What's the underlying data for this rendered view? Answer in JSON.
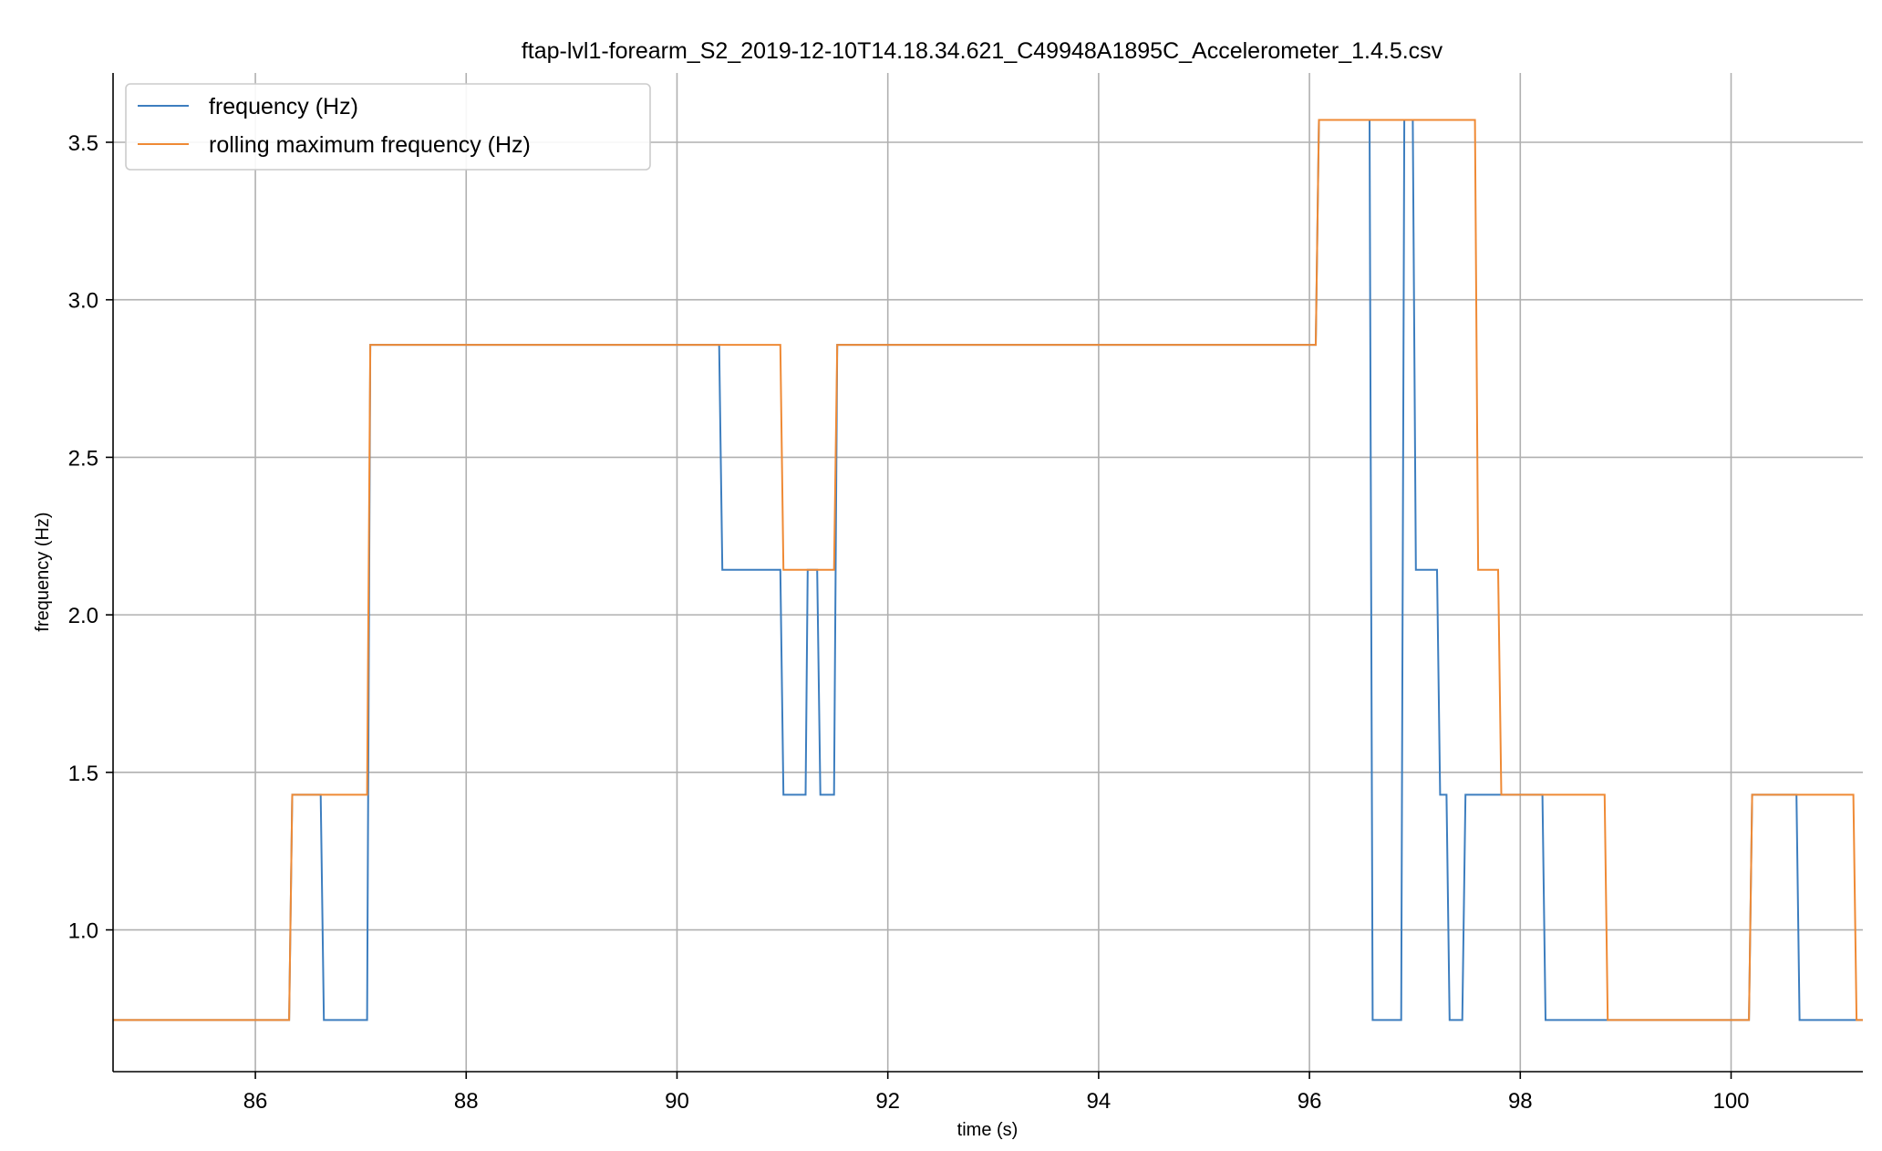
{
  "chart_data": {
    "type": "line",
    "step": true,
    "title": "ftap-lvl1-forearm_S2_2019-12-10T14.18.34.621_C49948A1895C_Accelerometer_1.4.5.csv",
    "xlabel": "time (s)",
    "ylabel": "frequency (Hz)",
    "xlim": [
      84.65,
      101.25
    ],
    "ylim": [
      0.55,
      3.72
    ],
    "xticks": [
      86,
      88,
      90,
      92,
      94,
      96,
      98,
      100
    ],
    "yticks": [
      1.0,
      1.5,
      2.0,
      2.5,
      3.0,
      3.5
    ],
    "xtick_labels": [
      "86",
      "88",
      "90",
      "92",
      "94",
      "96",
      "98",
      "100"
    ],
    "ytick_labels": [
      "1.0",
      "1.5",
      "2.0",
      "2.5",
      "3.0",
      "3.5"
    ],
    "grid": true,
    "legend": "top-left",
    "series": [
      {
        "name": "frequency (Hz)",
        "color": "#3d7ebf",
        "points": [
          [
            84.65,
            0.714
          ],
          [
            86.32,
            0.714
          ],
          [
            86.35,
            1.429
          ],
          [
            86.62,
            1.429
          ],
          [
            86.65,
            0.714
          ],
          [
            87.06,
            0.714
          ],
          [
            87.09,
            2.857
          ],
          [
            90.4,
            2.857
          ],
          [
            90.43,
            2.143
          ],
          [
            90.98,
            2.143
          ],
          [
            91.01,
            1.429
          ],
          [
            91.22,
            1.429
          ],
          [
            91.24,
            2.143
          ],
          [
            91.33,
            2.143
          ],
          [
            91.36,
            1.429
          ],
          [
            91.49,
            1.429
          ],
          [
            91.52,
            2.857
          ],
          [
            96.06,
            2.857
          ],
          [
            96.09,
            3.571
          ],
          [
            96.57,
            3.571
          ],
          [
            96.6,
            0.714
          ],
          [
            96.87,
            0.714
          ],
          [
            96.9,
            3.571
          ],
          [
            96.98,
            3.571
          ],
          [
            97.01,
            2.143
          ],
          [
            97.21,
            2.143
          ],
          [
            97.24,
            1.429
          ],
          [
            97.3,
            1.429
          ],
          [
            97.33,
            0.714
          ],
          [
            97.45,
            0.714
          ],
          [
            97.48,
            1.429
          ],
          [
            98.21,
            1.429
          ],
          [
            98.24,
            0.714
          ],
          [
            100.17,
            0.714
          ],
          [
            100.2,
            1.429
          ],
          [
            100.62,
            1.429
          ],
          [
            100.65,
            0.714
          ],
          [
            101.25,
            0.714
          ]
        ]
      },
      {
        "name": "rolling maximum frequency (Hz)",
        "color": "#ef8a35",
        "points": [
          [
            84.65,
            0.714
          ],
          [
            86.32,
            0.714
          ],
          [
            86.35,
            1.429
          ],
          [
            87.06,
            1.429
          ],
          [
            87.09,
            2.857
          ],
          [
            90.98,
            2.857
          ],
          [
            91.01,
            2.143
          ],
          [
            91.49,
            2.143
          ],
          [
            91.52,
            2.857
          ],
          [
            96.06,
            2.857
          ],
          [
            96.09,
            3.571
          ],
          [
            97.57,
            3.571
          ],
          [
            97.6,
            2.143
          ],
          [
            97.79,
            2.143
          ],
          [
            97.82,
            1.429
          ],
          [
            98.8,
            1.429
          ],
          [
            98.83,
            0.714
          ],
          [
            100.17,
            0.714
          ],
          [
            100.2,
            1.429
          ],
          [
            101.16,
            1.429
          ],
          [
            101.19,
            0.714
          ],
          [
            101.25,
            0.714
          ]
        ]
      }
    ]
  }
}
